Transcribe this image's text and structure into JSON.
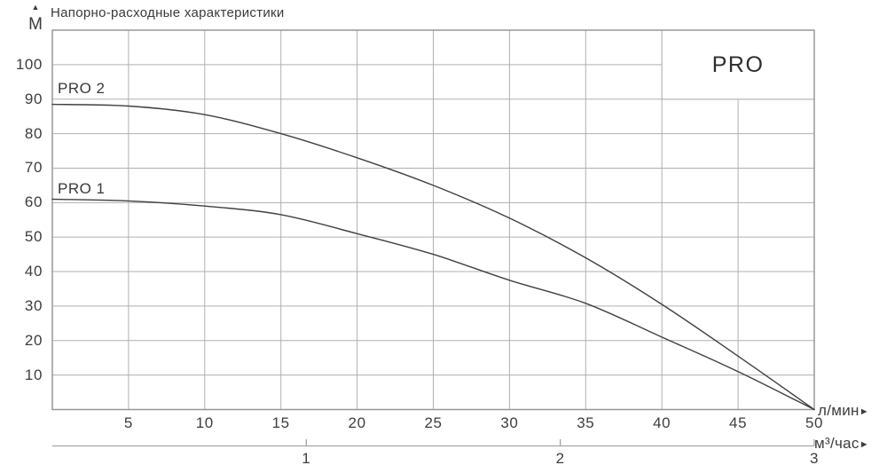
{
  "title": "Напорно-расходные характеристики",
  "badge": "PRO",
  "colors": {
    "curve": "#404040",
    "grid": "#b0b0b0",
    "border": "#979797",
    "axis2": "#a5a5a5",
    "text": "#3d3d3d",
    "background": "#ffffff"
  },
  "y_axis": {
    "unit": "М",
    "arrow_up_icon": "▲",
    "tick_labels": [
      "100",
      "90",
      "80",
      "70",
      "60",
      "50",
      "40",
      "30",
      "20",
      "10"
    ]
  },
  "x_axis_primary": {
    "unit": "л/мин",
    "arrow_right_icon": "►",
    "tick_labels": [
      "5",
      "10",
      "15",
      "20",
      "25",
      "30",
      "35",
      "40",
      "45",
      "50"
    ]
  },
  "x_axis_secondary": {
    "unit": "м³/час",
    "arrow_right_icon": "►",
    "tick_labels": [
      "1",
      "2",
      "3"
    ]
  },
  "chart_data": {
    "type": "line",
    "title": "Напорно-расходные характеристики",
    "ylabel": "М",
    "xlabel_primary": "л/мин",
    "xlabel_secondary": "м³/час",
    "x_l_min": [
      0,
      5,
      10,
      15,
      20,
      25,
      30,
      35,
      40,
      45,
      50
    ],
    "series": [
      {
        "name": "PRO 2",
        "values": [
          88.5,
          88,
          85.5,
          80,
          73,
          65,
          55.5,
          44,
          30.5,
          15.5,
          0
        ]
      },
      {
        "name": "PRO 1",
        "values": [
          61,
          60.5,
          59,
          56.5,
          51,
          45,
          37.5,
          30.8,
          21,
          11,
          0
        ]
      }
    ],
    "xlim": [
      0,
      50
    ],
    "ylim": [
      0,
      110
    ],
    "x_grid_step_l_min": 5,
    "y_grid_step_m": 10,
    "y_tick_values": [
      100,
      90,
      80,
      70,
      60,
      50,
      40,
      30,
      20,
      10
    ],
    "x_tick_values": [
      5,
      10,
      15,
      20,
      25,
      30,
      35,
      40,
      45,
      50
    ],
    "secondary_ticks_l_min": [
      16.667,
      33.333,
      50
    ],
    "secondary_tick_values_m3h": [
      1,
      2,
      3
    ],
    "grid": true,
    "legend_position": "labels-on-curves",
    "badge_region": {
      "x_range_l_min": [
        40,
        50
      ],
      "y_range_m": [
        90,
        110
      ]
    }
  }
}
